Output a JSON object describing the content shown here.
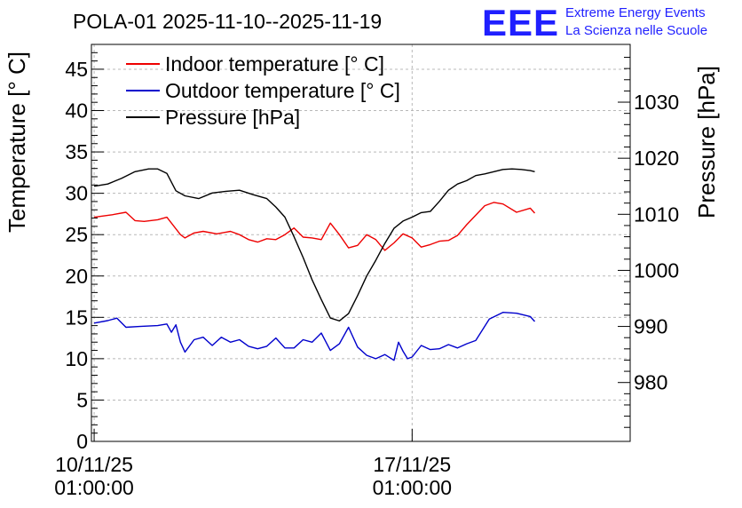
{
  "colors": {
    "indoor": "#ee0000",
    "outdoor": "#0000cc",
    "pressure": "#000000",
    "logo": "#1f1fff"
  },
  "logo": {
    "mark": "EEE",
    "line1": "Extreme Energy Events",
    "line2": "La Scienza nelle Scuole"
  },
  "chart_data": {
    "type": "line",
    "title": "POLA-01 2025-11-10--2025-11-19",
    "ylabel": "Temperature [° C]",
    "y2label": "Pressure [hPa]",
    "ylim": [
      0,
      48
    ],
    "y2lim": [
      969.5,
      1040.3
    ],
    "xlim": [
      -0.06,
      11.8
    ],
    "x_unit": "days since 10/11/25 01:00:00",
    "yticks": [
      "0",
      "5",
      "10",
      "15",
      "20",
      "25",
      "30",
      "35",
      "40",
      "45"
    ],
    "y2ticks": [
      "980",
      "990",
      "1000",
      "1010",
      "1020",
      "1030"
    ],
    "xticks": [
      {
        "x": 0,
        "line1": "10/11/25",
        "line2": "01:00:00"
      },
      {
        "x": 7,
        "line1": "17/11/25",
        "line2": "01:00:00"
      }
    ],
    "grid": true,
    "legend_position": "top-left",
    "series": [
      {
        "name": "Indoor temperature [° C]",
        "axis": "left",
        "x": [
          0,
          0.4,
          0.7,
          0.9,
          1.1,
          1.4,
          1.6,
          1.9,
          2.0,
          2.2,
          2.4,
          2.7,
          3.0,
          3.2,
          3.4,
          3.6,
          3.8,
          4.0,
          4.2,
          4.4,
          4.6,
          4.8,
          5.0,
          5.2,
          5.4,
          5.6,
          5.8,
          6.0,
          6.2,
          6.4,
          6.6,
          6.8,
          7.0,
          7.2,
          7.4,
          7.6,
          7.8,
          8.0,
          8.2,
          8.6,
          8.8,
          9.0,
          9.3,
          9.6,
          9.7
        ],
        "values": [
          27.1,
          27.4,
          27.7,
          26.7,
          26.6,
          26.8,
          27.1,
          25.0,
          24.6,
          25.2,
          25.4,
          25.1,
          25.4,
          25.0,
          24.4,
          24.1,
          24.5,
          24.4,
          25.0,
          25.8,
          24.7,
          24.6,
          24.4,
          26.4,
          25.0,
          23.4,
          23.7,
          25.0,
          24.4,
          23.1,
          24.0,
          25.1,
          24.6,
          23.5,
          23.8,
          24.2,
          24.3,
          24.9,
          26.2,
          28.5,
          28.9,
          28.7,
          27.7,
          28.2,
          27.6
        ]
      },
      {
        "name": "Outdoor temperature [° C]",
        "axis": "left",
        "x": [
          0,
          0.3,
          0.5,
          0.7,
          1.0,
          1.4,
          1.6,
          1.7,
          1.8,
          1.9,
          2.0,
          2.2,
          2.4,
          2.6,
          2.8,
          3.0,
          3.2,
          3.4,
          3.6,
          3.8,
          4.0,
          4.2,
          4.4,
          4.6,
          4.8,
          5.0,
          5.2,
          5.4,
          5.6,
          5.8,
          6.0,
          6.2,
          6.4,
          6.6,
          6.7,
          6.8,
          6.9,
          7.0,
          7.2,
          7.4,
          7.6,
          7.8,
          8.0,
          8.2,
          8.4,
          8.7,
          9.0,
          9.3,
          9.6,
          9.7
        ],
        "values": [
          14.3,
          14.6,
          14.9,
          13.8,
          13.9,
          14.0,
          14.2,
          13.2,
          14.1,
          12.0,
          10.8,
          12.3,
          12.6,
          11.6,
          12.6,
          12.0,
          12.3,
          11.5,
          11.2,
          11.5,
          12.5,
          11.3,
          11.3,
          12.3,
          12.0,
          13.1,
          11.0,
          11.8,
          13.8,
          11.4,
          10.4,
          10.0,
          10.5,
          9.8,
          12.0,
          10.9,
          10.0,
          10.2,
          11.6,
          11.1,
          11.2,
          11.7,
          11.3,
          11.8,
          12.2,
          14.8,
          15.6,
          15.5,
          15.1,
          14.5
        ]
      },
      {
        "name": "Pressure [hPa]",
        "axis": "right",
        "x": [
          0,
          0.3,
          0.6,
          0.9,
          1.2,
          1.4,
          1.6,
          1.8,
          2.0,
          2.3,
          2.6,
          2.9,
          3.2,
          3.5,
          3.8,
          4.0,
          4.2,
          4.4,
          4.6,
          4.8,
          5.0,
          5.2,
          5.4,
          5.6,
          5.8,
          6.0,
          6.2,
          6.4,
          6.6,
          6.8,
          7.0,
          7.2,
          7.4,
          7.6,
          7.8,
          8.0,
          8.2,
          8.4,
          8.6,
          8.8,
          9.0,
          9.2,
          9.4,
          9.6,
          9.7
        ],
        "values": [
          1015.0,
          1015.4,
          1016.4,
          1017.6,
          1018.1,
          1018.1,
          1017.3,
          1014.2,
          1013.3,
          1012.8,
          1013.8,
          1014.1,
          1014.3,
          1013.5,
          1012.8,
          1011.3,
          1009.5,
          1006.0,
          1002.3,
          998.3,
          994.8,
          991.5,
          991.0,
          992.3,
          995.5,
          999.0,
          1001.8,
          1004.8,
          1007.5,
          1008.8,
          1009.5,
          1010.3,
          1010.5,
          1012.3,
          1014.3,
          1015.4,
          1016.0,
          1016.9,
          1017.2,
          1017.6,
          1018.0,
          1018.1,
          1018.0,
          1017.8,
          1017.6
        ]
      }
    ]
  }
}
